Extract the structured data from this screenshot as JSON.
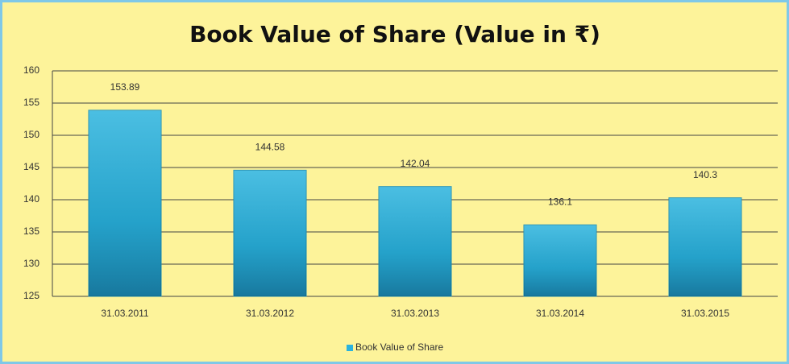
{
  "chart_data": {
    "type": "bar",
    "title": "Book Value of Share (Value in ₹)",
    "categories": [
      "31.03.2011",
      "31.03.2012",
      "31.03.2013",
      "31.03.2014",
      "31.03.2015"
    ],
    "series": [
      {
        "name": "Book Value of Share",
        "color": "#2bb3dd",
        "values": [
          153.89,
          144.58,
          142.04,
          136.1,
          140.3
        ]
      }
    ],
    "ylim": [
      125,
      160
    ],
    "yticks": [
      125,
      130,
      135,
      140,
      145,
      150,
      155,
      160
    ],
    "grid": true,
    "legend": "bottom"
  }
}
